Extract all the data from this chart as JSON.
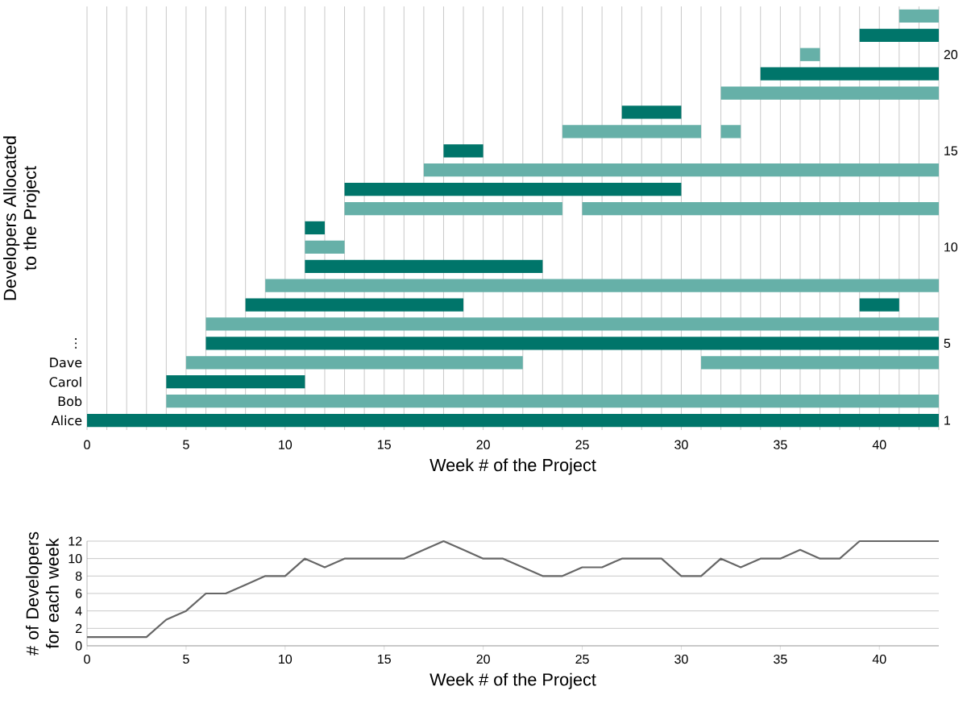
{
  "chart_data": [
    {
      "type": "bar",
      "orientation": "horizontal",
      "xlabel": "Week # of the Project",
      "ylabel": "Developers Allocated to the Project",
      "categories": [
        null,
        null,
        null,
        null,
        null,
        null,
        null,
        null,
        null,
        null,
        null,
        null,
        null,
        null,
        null,
        null,
        null,
        "⋮",
        "Dave",
        "Carol",
        "Bob",
        "Alice"
      ],
      "series": [
        {
          "base": [
            41,
            39,
            36,
            34,
            32,
            27,
            24,
            18,
            17,
            13,
            13,
            11,
            11,
            11,
            9,
            8,
            6,
            6,
            5,
            4,
            4,
            0
          ],
          "values": [
            2,
            4,
            1,
            9,
            11,
            3,
            7,
            2,
            26,
            17,
            11,
            1,
            2,
            12,
            34,
            11,
            37,
            37,
            17,
            7,
            39,
            43
          ],
          "colors": [
            "#66b0a8",
            "#00756a",
            "#66b0a8",
            "#00756a",
            "#66b0a8",
            "#00756a",
            "#66b0a8",
            "#00756a",
            "#66b0a8",
            "#00756a",
            "#66b0a8",
            "#00756a",
            "#66b0a8",
            "#00756a",
            "#66b0a8",
            "#00756a",
            "#66b0a8",
            "#00756a",
            "#66b0a8",
            "#00756a",
            "#66b0a8",
            "#00756a"
          ]
        },
        {
          "base": [
            null,
            null,
            null,
            null,
            null,
            null,
            32,
            null,
            null,
            null,
            25,
            null,
            null,
            null,
            null,
            39,
            null,
            null,
            31,
            null,
            null,
            null
          ],
          "values": [
            null,
            null,
            null,
            null,
            null,
            null,
            1,
            null,
            null,
            null,
            18,
            null,
            null,
            null,
            null,
            2,
            null,
            null,
            12,
            null,
            null,
            null
          ],
          "colors": [
            "#66b0a8",
            "#00756a",
            "#66b0a8",
            "#00756a",
            "#66b0a8",
            "#00756a",
            "#66b0a8",
            "#00756a",
            "#66b0a8",
            "#00756a",
            "#66b0a8",
            "#00756a",
            "#66b0a8",
            "#00756a",
            "#66b0a8",
            "#00756a",
            "#66b0a8",
            "#00756a",
            "#66b0a8",
            "#00756a",
            "#66b0a8",
            "#00756a"
          ]
        }
      ],
      "xlim": [
        0,
        43
      ],
      "xticks": [
        0,
        {
          "value": 1,
          "label": null
        },
        {
          "value": 2,
          "label": null
        },
        {
          "value": 3,
          "label": null
        },
        {
          "value": 4,
          "label": null
        },
        5,
        {
          "value": 6,
          "label": null
        },
        {
          "value": 7,
          "label": null
        },
        {
          "value": 8,
          "label": null
        },
        {
          "value": 9,
          "label": null
        },
        10,
        {
          "value": 11,
          "label": null
        },
        {
          "value": 12,
          "label": null
        },
        {
          "value": 13,
          "label": null
        },
        {
          "value": 14,
          "label": null
        },
        15,
        {
          "value": 16,
          "label": null
        },
        {
          "value": 17,
          "label": null
        },
        {
          "value": 18,
          "label": null
        },
        {
          "value": 19,
          "label": null
        },
        20,
        {
          "value": 21,
          "label": null
        },
        {
          "value": 22,
          "label": null
        },
        {
          "value": 23,
          "label": null
        },
        {
          "value": 24,
          "label": null
        },
        25,
        {
          "value": 26,
          "label": null
        },
        {
          "value": 27,
          "label": null
        },
        {
          "value": 28,
          "label": null
        },
        {
          "value": 29,
          "label": null
        },
        30,
        {
          "value": 31,
          "label": null
        },
        {
          "value": 32,
          "label": null
        },
        {
          "value": 33,
          "label": null
        },
        {
          "value": 34,
          "label": null
        },
        35,
        {
          "value": 36,
          "label": null
        },
        {
          "value": 37,
          "label": null
        },
        {
          "value": 38,
          "label": null
        },
        {
          "value": 39,
          "label": null
        },
        40,
        {
          "value": 41,
          "label": null
        },
        {
          "value": 42,
          "label": null
        },
        {
          "value": 43,
          "label": null
        }
      ],
      "y2lim": [
        0.5,
        22.5
      ],
      "y2ticks": [
        1,
        5,
        10,
        15,
        20
      ],
      "grid": "x"
    },
    {
      "type": "line",
      "xlabel": "Week # of the Project",
      "ylabel": "# of Developers for each week",
      "x": [
        0,
        1,
        2,
        3,
        4,
        5,
        6,
        7,
        8,
        9,
        10,
        11,
        12,
        13,
        14,
        15,
        16,
        17,
        18,
        19,
        20,
        21,
        22,
        23,
        24,
        25,
        26,
        27,
        28,
        29,
        30,
        31,
        32,
        33,
        34,
        35,
        36,
        37,
        38,
        39,
        40,
        41,
        42,
        43
      ],
      "series": [
        {
          "color": "#666666",
          "values": [
            1,
            1,
            1,
            1,
            3,
            4,
            6,
            6,
            7,
            8,
            8,
            10,
            9,
            10,
            10,
            10,
            10,
            11,
            12,
            11,
            10,
            10,
            9,
            8,
            8,
            9,
            9,
            10,
            10,
            10,
            8,
            8,
            10,
            9,
            10,
            10,
            11,
            10,
            10,
            12,
            12,
            12,
            12,
            12
          ]
        }
      ],
      "xlim": [
        0,
        43
      ],
      "xticks": [
        0,
        5,
        10,
        15,
        20,
        25,
        30,
        35,
        40
      ],
      "ylim": [
        0,
        12
      ],
      "yticks": [
        0,
        2,
        4,
        6,
        8,
        10,
        12
      ],
      "grid": "y"
    }
  ]
}
